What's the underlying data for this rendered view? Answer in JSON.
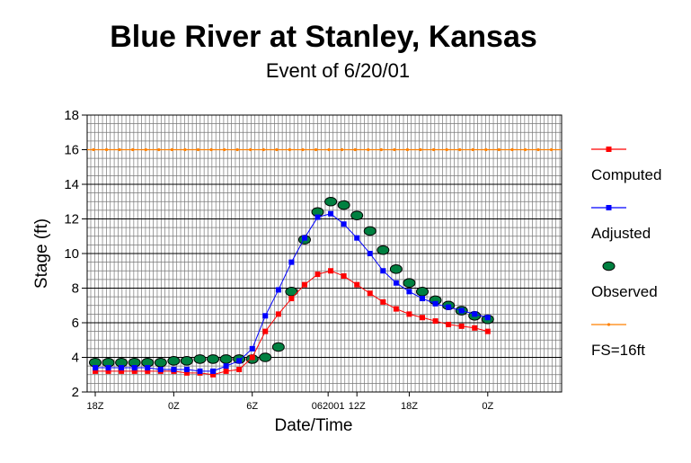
{
  "chart_data": {
    "type": "line",
    "title": "Blue River at Stanley, Kansas",
    "subtitle": "Event of 6/20/01",
    "xlabel": "Date/Time",
    "ylabel": "Stage (ft)",
    "ylim": [
      2,
      18
    ],
    "yticks": [
      2,
      4,
      6,
      8,
      10,
      12,
      14,
      16,
      18
    ],
    "xlim": [
      0,
      36
    ],
    "xtick_labels": [
      {
        "x": 0,
        "label": "18Z"
      },
      {
        "x": 6,
        "label": "0Z"
      },
      {
        "x": 12,
        "label": "6Z"
      },
      {
        "x": 17.8,
        "label": "062001"
      },
      {
        "x": 20,
        "label": "12Z"
      },
      {
        "x": 24,
        "label": "18Z"
      },
      {
        "x": 30,
        "label": "0Z"
      }
    ],
    "grid": true,
    "legend_position": "right",
    "series": [
      {
        "name": "Computed",
        "color": "#ff0000",
        "marker": "square",
        "line": true,
        "x": [
          0,
          1,
          2,
          3,
          4,
          5,
          6,
          7,
          8,
          9,
          10,
          11,
          12,
          13,
          14,
          15,
          16,
          17,
          18,
          19,
          20,
          21,
          22,
          23,
          24,
          25,
          26,
          27,
          28,
          29,
          30
        ],
        "values": [
          3.2,
          3.2,
          3.2,
          3.2,
          3.2,
          3.2,
          3.2,
          3.1,
          3.1,
          3.0,
          3.2,
          3.3,
          4.0,
          5.5,
          6.5,
          7.4,
          8.2,
          8.8,
          9.0,
          8.7,
          8.2,
          7.7,
          7.2,
          6.8,
          6.5,
          6.3,
          6.1,
          5.9,
          5.8,
          5.7,
          5.5
        ]
      },
      {
        "name": "Adjusted",
        "color": "#0000ff",
        "marker": "square",
        "line": true,
        "x": [
          0,
          1,
          2,
          3,
          4,
          5,
          6,
          7,
          8,
          9,
          10,
          11,
          12,
          13,
          14,
          15,
          16,
          17,
          18,
          19,
          20,
          21,
          22,
          23,
          24,
          25,
          26,
          27,
          28,
          29,
          30
        ],
        "values": [
          3.4,
          3.4,
          3.4,
          3.4,
          3.4,
          3.3,
          3.3,
          3.3,
          3.2,
          3.2,
          3.5,
          3.8,
          4.5,
          6.4,
          7.9,
          9.5,
          10.9,
          12.1,
          12.3,
          11.7,
          10.9,
          10.0,
          9.0,
          8.3,
          7.8,
          7.4,
          7.1,
          6.9,
          6.7,
          6.5,
          6.3
        ]
      },
      {
        "name": "Observed",
        "color": "#008040",
        "marker": "ellipse",
        "line": false,
        "x": [
          0,
          1,
          2,
          3,
          4,
          5,
          6,
          7,
          8,
          9,
          10,
          11,
          12,
          13,
          14,
          15,
          16,
          17,
          18,
          19,
          20,
          21,
          22,
          23,
          24,
          25,
          26,
          27,
          28,
          29,
          30
        ],
        "values": [
          3.7,
          3.7,
          3.7,
          3.7,
          3.7,
          3.7,
          3.8,
          3.8,
          3.9,
          3.9,
          3.9,
          3.9,
          3.9,
          4.0,
          4.6,
          7.8,
          10.8,
          12.4,
          13.0,
          12.8,
          12.2,
          11.3,
          10.2,
          9.1,
          8.3,
          7.8,
          7.3,
          7.0,
          6.7,
          6.4,
          6.2
        ]
      },
      {
        "name": "FS=16ft",
        "color": "#ff8000",
        "marker": "dot",
        "line": true,
        "constant": 16
      }
    ]
  }
}
